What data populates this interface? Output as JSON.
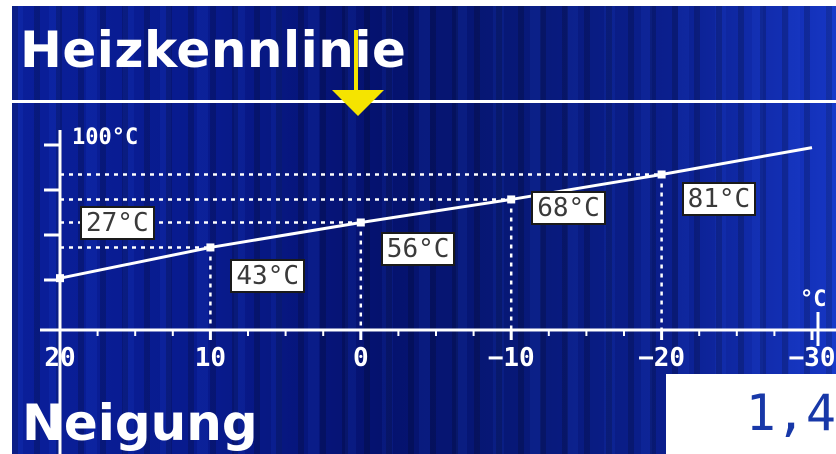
{
  "screen": {
    "title": "Heizkennlinie",
    "y_axis_label": "100°C",
    "x_axis_unit": "°C",
    "footer": {
      "label": "Neigung",
      "value": "1,4"
    },
    "colors": {
      "background": "#0a1f9a",
      "foreground": "#ffffff",
      "marker": "#f5e400",
      "value_text": "#1838a8"
    },
    "icons": [
      "arrow-down-marker-icon"
    ]
  },
  "chart_data": {
    "type": "line",
    "title": "Heizkennlinie",
    "xlabel": "°C",
    "ylabel": "",
    "x_ticks": [
      20,
      10,
      0,
      -10,
      -20,
      -30
    ],
    "x_tick_labels": [
      "20",
      "10",
      "0",
      "−10",
      "−20",
      "−30"
    ],
    "xlim": [
      20,
      -30
    ],
    "series": [
      {
        "x": [
          20,
          10,
          0,
          -10,
          -20,
          -30
        ],
        "y": [
          27,
          43,
          56,
          68,
          81,
          95
        ]
      }
    ],
    "highlighted_points": [
      {
        "x": 20,
        "y": 27,
        "label": "27°C"
      },
      {
        "x": 10,
        "y": 43,
        "label": "43°C"
      },
      {
        "x": 0,
        "y": 56,
        "label": "56°C"
      },
      {
        "x": -10,
        "y": 68,
        "label": "68°C"
      },
      {
        "x": -20,
        "y": 81,
        "label": "81°C"
      }
    ],
    "y_axis_max_label": "100°C",
    "grid": "dashed guide lines at highlighted points"
  }
}
